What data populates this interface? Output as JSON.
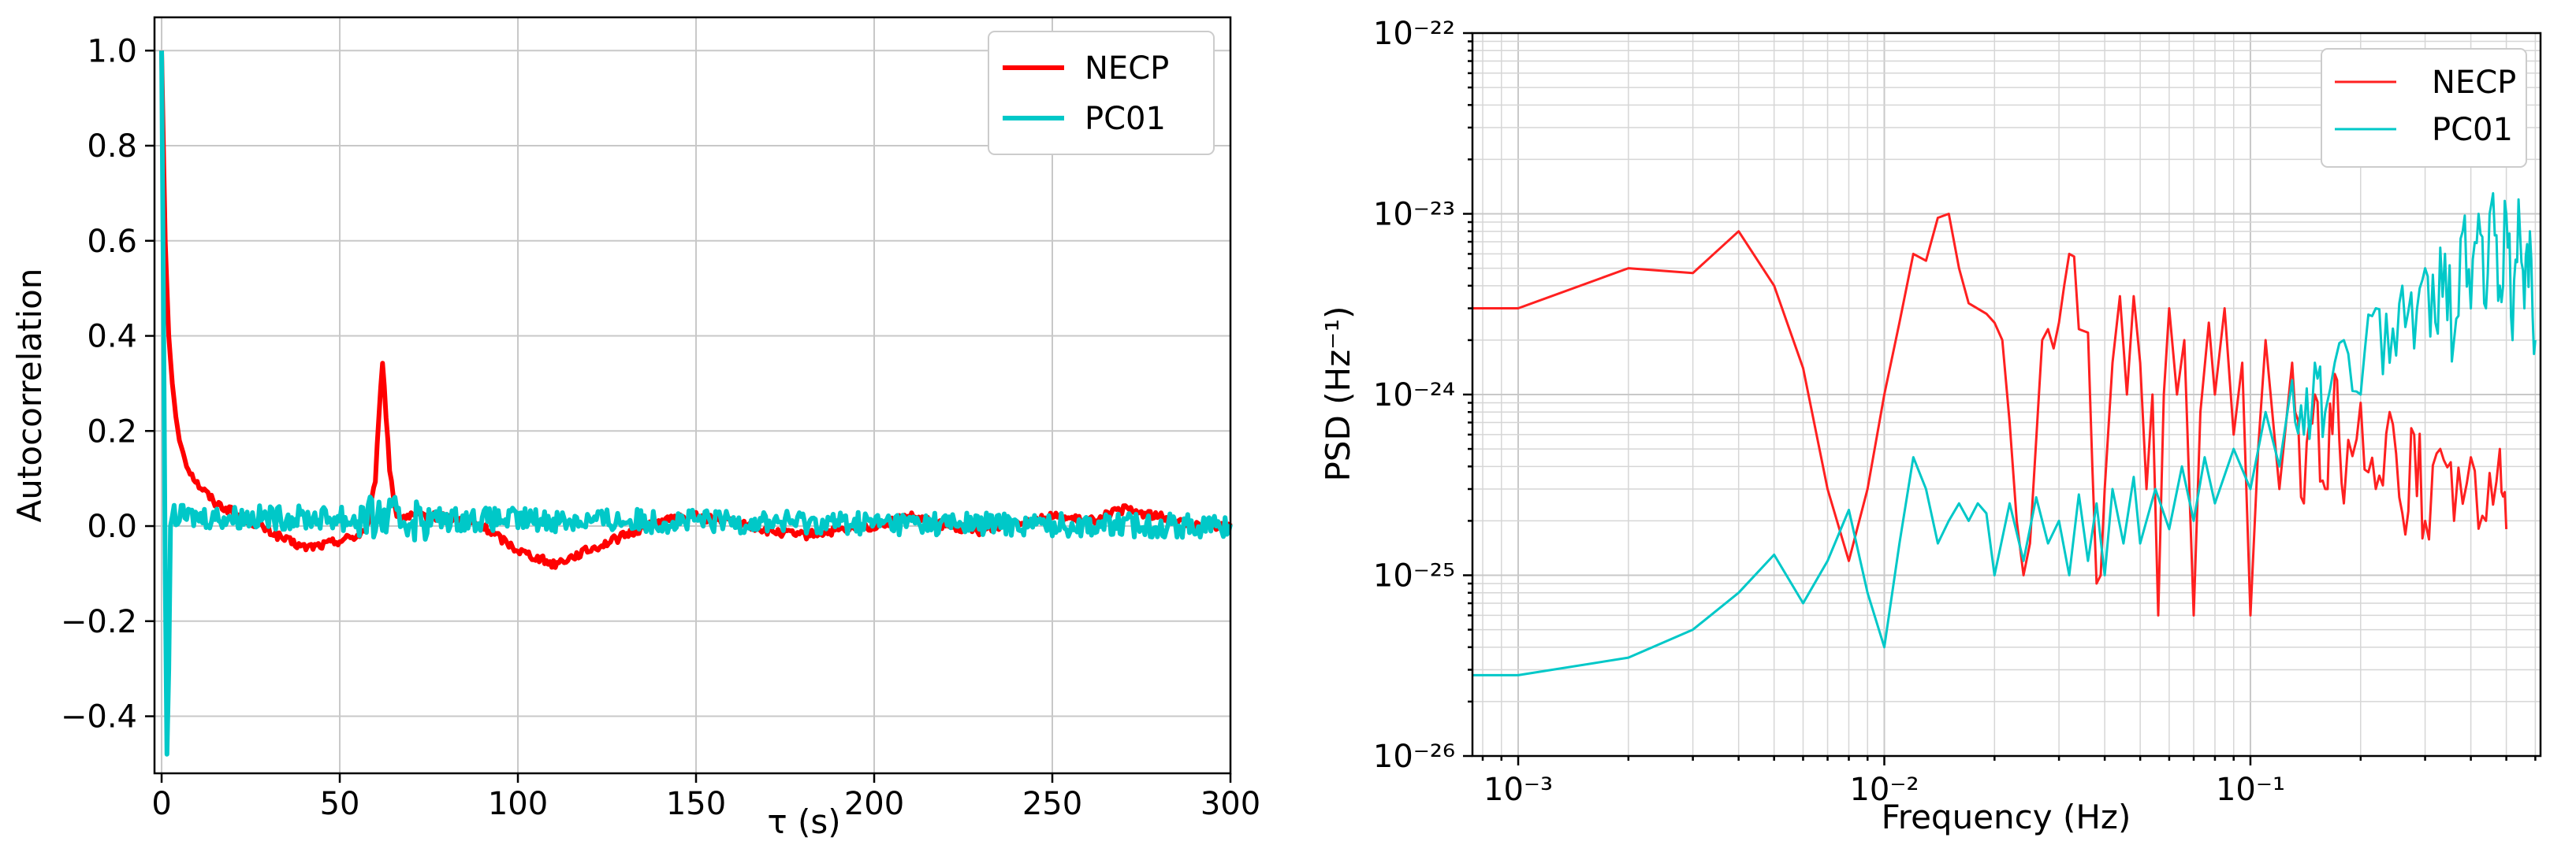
{
  "chart_data": [
    {
      "type": "line",
      "title": "",
      "xlabel": "τ (s)",
      "ylabel": "Autocorrelation",
      "xlim": [
        -2,
        300
      ],
      "ylim": [
        -0.52,
        1.07
      ],
      "xticks": [
        0,
        50,
        100,
        150,
        200,
        250,
        300
      ],
      "yticks": [
        -0.4,
        -0.2,
        0.0,
        0.2,
        0.4,
        0.6,
        0.8,
        1.0
      ],
      "ytick_labels": [
        "−0.4",
        "−0.2",
        "0.0",
        "0.2",
        "0.4",
        "0.6",
        "0.8",
        "1.0"
      ],
      "grid": true,
      "legend_position": "top-right",
      "series": [
        {
          "name": "NECP",
          "color": "#ff0000",
          "anchors": [
            [
              0,
              1.0
            ],
            [
              1,
              0.6
            ],
            [
              2,
              0.4
            ],
            [
              3,
              0.3
            ],
            [
              4,
              0.23
            ],
            [
              5,
              0.18
            ],
            [
              7,
              0.13
            ],
            [
              10,
              0.09
            ],
            [
              15,
              0.05
            ],
            [
              20,
              0.03
            ],
            [
              25,
              0.01
            ],
            [
              30,
              -0.01
            ],
            [
              35,
              -0.03
            ],
            [
              40,
              -0.045
            ],
            [
              45,
              -0.04
            ],
            [
              50,
              -0.03
            ],
            [
              55,
              -0.02
            ],
            [
              58,
              0.0
            ],
            [
              60,
              0.1
            ],
            [
              62,
              0.35
            ],
            [
              64,
              0.12
            ],
            [
              66,
              0.02
            ],
            [
              70,
              0.02
            ],
            [
              80,
              0.02
            ],
            [
              90,
              0.0
            ],
            [
              100,
              -0.05
            ],
            [
              110,
              -0.08
            ],
            [
              120,
              -0.05
            ],
            [
              130,
              -0.02
            ],
            [
              140,
              0.01
            ],
            [
              150,
              0.02
            ],
            [
              160,
              0.01
            ],
            [
              170,
              -0.01
            ],
            [
              180,
              -0.02
            ],
            [
              190,
              -0.01
            ],
            [
              200,
              0.0
            ],
            [
              210,
              0.02
            ],
            [
              220,
              0.0
            ],
            [
              230,
              -0.01
            ],
            [
              240,
              0.01
            ],
            [
              250,
              0.02
            ],
            [
              260,
              0.01
            ],
            [
              270,
              0.035
            ],
            [
              280,
              0.02
            ],
            [
              290,
              0.0
            ],
            [
              300,
              0.0
            ]
          ]
        },
        {
          "name": "PC01",
          "color": "#00c8c8",
          "anchors": [
            [
              0,
              1.0
            ],
            [
              0.5,
              0.5
            ],
            [
              1,
              -0.1
            ],
            [
              1.5,
              -0.48
            ],
            [
              2,
              -0.3
            ],
            [
              2.5,
              0.0
            ],
            [
              3,
              0.02
            ],
            [
              300,
              0.0
            ]
          ]
        }
      ]
    },
    {
      "type": "line",
      "title": "",
      "xlabel": "Frequency (Hz)",
      "ylabel": "PSD (Hz⁻¹)",
      "xscale": "log",
      "yscale": "log",
      "xlim": [
        0.00075,
        0.62
      ],
      "ylim": [
        1e-26,
        1e-22
      ],
      "xticks": [
        0.001,
        0.01,
        0.1
      ],
      "xtick_labels": [
        "10⁻³",
        "10⁻²",
        "10⁻¹"
      ],
      "yticks": [
        1e-26,
        1e-25,
        1e-24,
        1e-23,
        1e-22
      ],
      "ytick_labels": [
        "10⁻²⁶",
        "10⁻²⁵",
        "10⁻²⁴",
        "10⁻²³",
        "10⁻²²"
      ],
      "grid": true,
      "legend_position": "top-right",
      "series": [
        {
          "name": "NECP",
          "color": "#ff2020",
          "points": [
            [
              0.00075,
              3e-24
            ],
            [
              0.001,
              3e-24
            ],
            [
              0.002,
              5e-24
            ],
            [
              0.003,
              4.7e-24
            ],
            [
              0.004,
              8e-24
            ],
            [
              0.005,
              4e-24
            ],
            [
              0.006,
              1.4e-24
            ],
            [
              0.007,
              3e-25
            ],
            [
              0.008,
              1.2e-25
            ],
            [
              0.009,
              3e-25
            ],
            [
              0.01,
              1e-24
            ],
            [
              0.011,
              2.5e-24
            ],
            [
              0.012,
              6e-24
            ],
            [
              0.013,
              5.5e-24
            ],
            [
              0.014,
              9.5e-24
            ],
            [
              0.015,
              1e-23
            ],
            [
              0.016,
              5e-24
            ],
            [
              0.017,
              3.2e-24
            ],
            [
              0.019,
              2.8e-24
            ],
            [
              0.02,
              2.5e-24
            ],
            [
              0.021,
              2e-24
            ],
            [
              0.022,
              7e-25
            ],
            [
              0.023,
              2e-25
            ],
            [
              0.024,
              1e-25
            ],
            [
              0.025,
              1.5e-25
            ],
            [
              0.027,
              2e-24
            ],
            [
              0.028,
              2.3e-24
            ],
            [
              0.029,
              1.8e-24
            ],
            [
              0.03,
              2.5e-24
            ],
            [
              0.031,
              4e-24
            ],
            [
              0.032,
              6e-24
            ],
            [
              0.033,
              5.8e-24
            ],
            [
              0.034,
              2.3e-24
            ],
            [
              0.036,
              2.2e-24
            ],
            [
              0.037,
              4e-25
            ],
            [
              0.038,
              9e-26
            ],
            [
              0.039,
              1e-25
            ],
            [
              0.04,
              3e-25
            ],
            [
              0.042,
              1.5e-24
            ],
            [
              0.044,
              3.5e-24
            ],
            [
              0.046,
              1e-24
            ],
            [
              0.048,
              3.5e-24
            ],
            [
              0.05,
              1.5e-24
            ],
            [
              0.052,
              3e-25
            ],
            [
              0.054,
              1e-24
            ],
            [
              0.056,
              6e-26
            ],
            [
              0.058,
              1e-24
            ],
            [
              0.06,
              3e-24
            ],
            [
              0.063,
              1e-24
            ],
            [
              0.066,
              2e-24
            ],
            [
              0.07,
              6e-26
            ],
            [
              0.073,
              8e-25
            ],
            [
              0.077,
              2.5e-24
            ],
            [
              0.08,
              1e-24
            ],
            [
              0.085,
              3e-24
            ],
            [
              0.09,
              6e-25
            ],
            [
              0.095,
              1.5e-24
            ],
            [
              0.1,
              6e-26
            ],
            [
              0.105,
              5e-25
            ],
            [
              0.11,
              2e-24
            ],
            [
              0.12,
              3e-25
            ],
            [
              0.13,
              1.5e-24
            ],
            [
              0.14,
              2.5e-25
            ],
            [
              0.15,
              1e-24
            ],
            [
              0.16,
              3e-25
            ],
            [
              0.17,
              1.3e-24
            ],
            [
              0.18,
              2.5e-25
            ],
            [
              0.2,
              9e-25
            ],
            [
              0.22,
              3e-25
            ],
            [
              0.24,
              8e-25
            ],
            [
              0.26,
              2.2e-25
            ],
            [
              0.28,
              6e-25
            ],
            [
              0.3,
              2e-25
            ],
            [
              0.33,
              5e-25
            ],
            [
              0.36,
              2e-25
            ],
            [
              0.4,
              4.5e-25
            ],
            [
              0.44,
              2e-25
            ],
            [
              0.48,
              5e-25
            ],
            [
              0.5,
              1.8e-25
            ]
          ]
        },
        {
          "name": "PC01",
          "color": "#00c8c8",
          "points": [
            [
              0.00075,
              2.8e-26
            ],
            [
              0.001,
              2.8e-26
            ],
            [
              0.002,
              3.5e-26
            ],
            [
              0.003,
              5e-26
            ],
            [
              0.004,
              8e-26
            ],
            [
              0.005,
              1.3e-25
            ],
            [
              0.006,
              7e-26
            ],
            [
              0.007,
              1.2e-25
            ],
            [
              0.008,
              2.3e-25
            ],
            [
              0.009,
              8e-26
            ],
            [
              0.01,
              4e-26
            ],
            [
              0.011,
              1.5e-25
            ],
            [
              0.012,
              4.5e-25
            ],
            [
              0.013,
              3e-25
            ],
            [
              0.014,
              1.5e-25
            ],
            [
              0.015,
              2e-25
            ],
            [
              0.016,
              2.5e-25
            ],
            [
              0.017,
              2e-25
            ],
            [
              0.018,
              2.5e-25
            ],
            [
              0.019,
              2.2e-25
            ],
            [
              0.02,
              1e-25
            ],
            [
              0.022,
              2.5e-25
            ],
            [
              0.024,
              1.2e-25
            ],
            [
              0.026,
              2.7e-25
            ],
            [
              0.028,
              1.5e-25
            ],
            [
              0.03,
              2e-25
            ],
            [
              0.032,
              1e-25
            ],
            [
              0.034,
              2.8e-25
            ],
            [
              0.036,
              1.2e-25
            ],
            [
              0.038,
              2.5e-25
            ],
            [
              0.04,
              1e-25
            ],
            [
              0.042,
              3e-25
            ],
            [
              0.045,
              1.5e-25
            ],
            [
              0.048,
              3.5e-25
            ],
            [
              0.05,
              1.5e-25
            ],
            [
              0.055,
              3e-25
            ],
            [
              0.06,
              1.8e-25
            ],
            [
              0.065,
              4e-25
            ],
            [
              0.07,
              2e-25
            ],
            [
              0.075,
              4.5e-25
            ],
            [
              0.08,
              2.5e-25
            ],
            [
              0.09,
              5e-25
            ],
            [
              0.1,
              3e-25
            ],
            [
              0.11,
              8e-25
            ],
            [
              0.12,
              4e-25
            ],
            [
              0.13,
              1.2e-24
            ],
            [
              0.14,
              6e-25
            ],
            [
              0.15,
              1.5e-24
            ],
            [
              0.16,
              8e-25
            ],
            [
              0.18,
              2e-24
            ],
            [
              0.2,
              1e-24
            ],
            [
              0.22,
              3e-24
            ],
            [
              0.24,
              1.5e-24
            ],
            [
              0.26,
              4e-24
            ],
            [
              0.28,
              1.8e-24
            ],
            [
              0.3,
              5e-24
            ],
            [
              0.32,
              2.5e-24
            ],
            [
              0.34,
              6e-24
            ],
            [
              0.36,
              2e-24
            ],
            [
              0.38,
              8e-24
            ],
            [
              0.4,
              3e-24
            ],
            [
              0.42,
              1e-23
            ],
            [
              0.44,
              3e-24
            ],
            [
              0.46,
              1.3e-23
            ],
            [
              0.48,
              4e-24
            ],
            [
              0.5,
              1e-23
            ],
            [
              0.52,
              2e-24
            ],
            [
              0.54,
              1.2e-23
            ],
            [
              0.56,
              3e-24
            ],
            [
              0.58,
              8e-24
            ],
            [
              0.6,
              2e-24
            ]
          ]
        }
      ]
    }
  ]
}
